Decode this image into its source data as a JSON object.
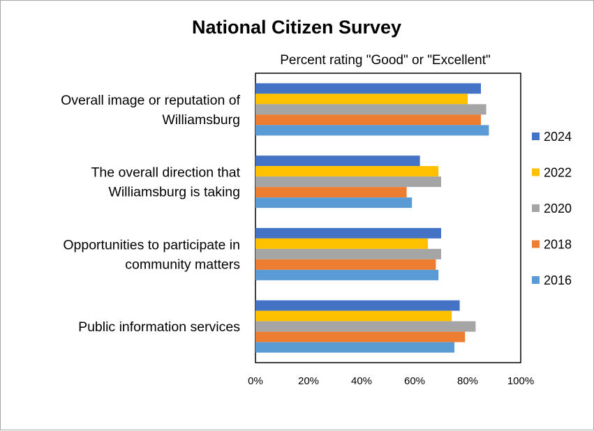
{
  "chart_data": {
    "type": "bar",
    "orientation": "horizontal",
    "title": "National Citizen Survey",
    "subtitle": "Percent rating \"Good\" or \"Excellent\"",
    "categories": [
      [
        "Overall image or reputation of",
        "Williamsburg"
      ],
      [
        "The overall direction that",
        "Williamsburg is taking"
      ],
      [
        "Opportunities to participate in",
        "community matters"
      ],
      [
        "Public information services"
      ]
    ],
    "series": [
      {
        "name": "2024",
        "color": "#4472c4",
        "values": [
          85,
          62,
          70,
          77
        ]
      },
      {
        "name": "2022",
        "color": "#ffc000",
        "values": [
          80,
          69,
          65,
          74
        ]
      },
      {
        "name": "2020",
        "color": "#a5a5a5",
        "values": [
          87,
          70,
          70,
          83
        ]
      },
      {
        "name": "2018",
        "color": "#ed7d31",
        "values": [
          85,
          57,
          68,
          79
        ]
      },
      {
        "name": "2016",
        "color": "#5b9bd5",
        "values": [
          88,
          59,
          69,
          75
        ]
      }
    ],
    "xlim": [
      0,
      100
    ],
    "ticks": [
      "0%",
      "20%",
      "40%",
      "60%",
      "80%",
      "100%"
    ],
    "legend_position": "right"
  }
}
